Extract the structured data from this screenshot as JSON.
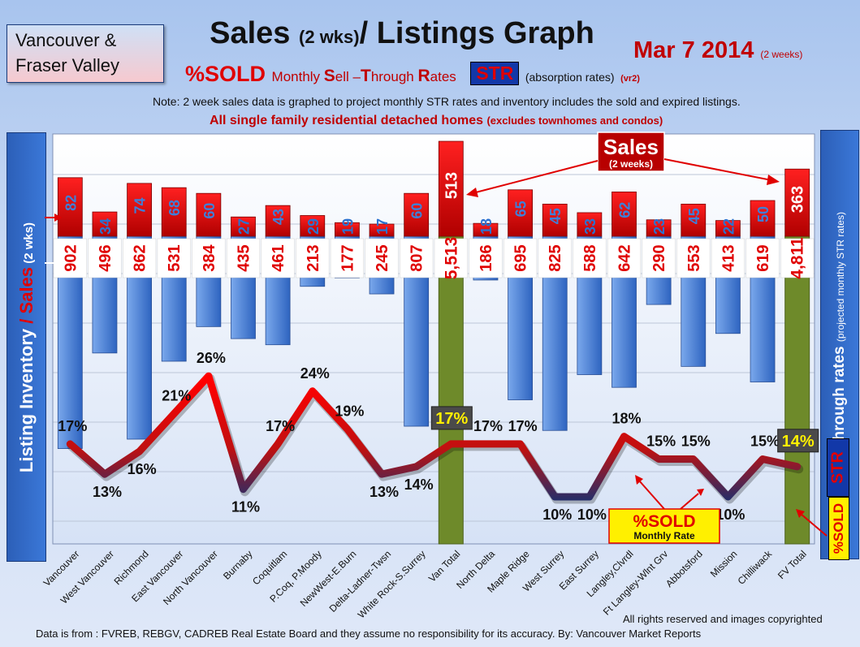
{
  "header": {
    "region_line1": "Vancouver &",
    "region_line2": "Fraser Valley",
    "title_main": "Sales",
    "title_paren": "(2 wks)",
    "title_rest": "/ Listings Graph",
    "date": "Mar 7 2014",
    "date_note": "(2 weeks)",
    "subtitle_sold": "%SOLD",
    "subtitle_m1": "Monthly ",
    "subtitle_S": "S",
    "subtitle_m2": "ell –",
    "subtitle_T": "T",
    "subtitle_m3": "hrough ",
    "subtitle_R": "R",
    "subtitle_m4": "ates",
    "str_badge": "STR",
    "absorption": "(absorption rates)",
    "version": "(vr2)",
    "note": "Note: 2 week sales data is graphed to project monthly STR rates and inventory includes the sold and expired listings.",
    "note2_main": "All single family residential detached homes",
    "note2_paren": "(excludes townhomes and condos)"
  },
  "side": {
    "left_a": "Listing Inventory",
    "left_slash": " / ",
    "left_b": "Sales",
    "left_c": " (2 wks)",
    "right_a": "Sell-through rates",
    "right_b": "(projected monthly STR rates)",
    "str_label": "STR",
    "sold_label": "%SOLD"
  },
  "annotations": {
    "sales_callout": "Sales",
    "sales_callout_sub": "(2 weeks)",
    "sold_callout": "%SOLD",
    "sold_callout_sub": "Monthly Rate"
  },
  "footer": {
    "rights": "All rights reserved and  images copyrighted",
    "source": "Data is  from : FVREB, REBGV, CADREB Real Estate Board and they assume no responsibility  for its accuracy. By: Vancouver Market Reports"
  },
  "chart_data": {
    "type": "bar",
    "categories": [
      "Vancouver",
      "West Vancouver",
      "Richmond",
      "East Vancouver",
      "North Vancouver",
      "Burnaby",
      "Coquitlam",
      "P.Coq, P.Moody",
      "NewWest-E.Burn",
      "Delta-Ladner-Twsn",
      "White Rock-S.Surrey",
      "Van Total",
      "North Delta",
      "Maple Ridge",
      "West Surrey",
      "East Surrey",
      "Langley,Clvrdl",
      "Ft Langley-Wlnt Grv",
      "Abbotsford",
      "Mission",
      "Chilliwack",
      "FV Total"
    ],
    "sales_labels": [
      "82",
      "34",
      "74",
      "68",
      "60",
      "27",
      "43",
      "29",
      "19",
      "17",
      "60",
      "513",
      "18",
      "65",
      "45",
      "33",
      "62",
      "23",
      "45",
      "22",
      "50",
      "363"
    ],
    "sales": [
      82,
      34,
      74,
      68,
      60,
      27,
      43,
      29,
      19,
      17,
      60,
      513,
      18,
      65,
      45,
      33,
      62,
      23,
      45,
      22,
      50,
      363
    ],
    "inventory_labels": [
      "902",
      "496",
      "862",
      "531",
      "384",
      "435",
      "461",
      "213",
      "177",
      "245",
      "807",
      "5,513",
      "186",
      "695",
      "825",
      "588",
      "642",
      "290",
      "553",
      "413",
      "619",
      "4,811"
    ],
    "inventory": [
      902,
      496,
      862,
      531,
      384,
      435,
      461,
      213,
      177,
      245,
      807,
      5513,
      186,
      695,
      825,
      588,
      642,
      290,
      553,
      413,
      619,
      4811
    ],
    "str_labels": [
      "17%",
      "13%",
      "16%",
      "21%",
      "26%",
      "11%",
      "17%",
      "24%",
      "19%",
      "13%",
      "14%",
      "17%",
      "17%",
      "17%",
      "10%",
      "10%",
      "18%",
      "15%",
      "15%",
      "10%",
      "15%",
      "14%"
    ],
    "str_percent": [
      17,
      13,
      16,
      21,
      26,
      11,
      17,
      24,
      19,
      13,
      14,
      17,
      17,
      17,
      10,
      10,
      18,
      15,
      15,
      10,
      15,
      14
    ],
    "totals": [
      "Van Total",
      "FV Total"
    ],
    "colors": {
      "sales": "#e00000",
      "inventory": "#4a86d8",
      "total": "#6e8a2a",
      "line_high": "#ff0000",
      "line_low": "#1c2f6e"
    }
  }
}
